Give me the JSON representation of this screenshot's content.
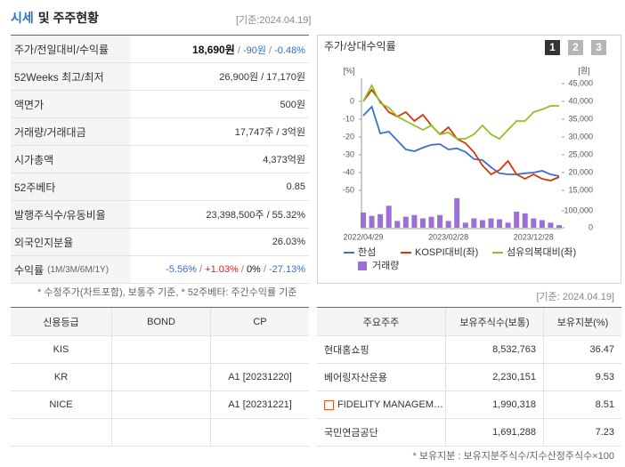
{
  "header": {
    "title_highlight": "시세",
    "title_rest": "및 주주현황",
    "date": "[기준:2024.04.19]"
  },
  "summary": {
    "rows": [
      {
        "label": "주가/전일대비/수익률",
        "segments": [
          {
            "text": "18,690원",
            "bold": true,
            "color": "#111111"
          },
          {
            "text": " / ",
            "color": "#888888"
          },
          {
            "text": "-90원",
            "color": "#2f6fd1"
          },
          {
            "text": " / ",
            "color": "#888888"
          },
          {
            "text": "-0.48%",
            "color": "#2f6fd1"
          }
        ]
      },
      {
        "label": "52Weeks 최고/최저",
        "segments": [
          {
            "text": "26,900원 / 17,170원",
            "color": "#333333"
          }
        ]
      },
      {
        "label": "액면가",
        "segments": [
          {
            "text": "500원",
            "color": "#333333"
          }
        ]
      },
      {
        "label": "거래량/거래대금",
        "segments": [
          {
            "text": "17,747주 / 3억원",
            "color": "#333333"
          }
        ]
      },
      {
        "label": "시가총액",
        "segments": [
          {
            "text": "4,373억원",
            "color": "#333333"
          }
        ]
      },
      {
        "label": "52주베타",
        "segments": [
          {
            "text": "0.85",
            "color": "#333333"
          }
        ]
      },
      {
        "label": "발행주식수/유동비율",
        "segments": [
          {
            "text": "23,398,500주 / 55.32%",
            "color": "#333333"
          }
        ]
      },
      {
        "label": "외국인지분율",
        "segments": [
          {
            "text": "26.03%",
            "color": "#333333"
          }
        ]
      },
      {
        "label": "수익률",
        "label_note": "(1M/3M/6M/1Y)",
        "segments": [
          {
            "text": "-5.56%",
            "color": "#2f6fd1"
          },
          {
            "text": " / ",
            "color": "#888888"
          },
          {
            "text": "+1.03%",
            "color": "#e02020"
          },
          {
            "text": " / ",
            "color": "#888888"
          },
          {
            "text": "0%",
            "color": "#111111"
          },
          {
            "text": " / ",
            "color": "#888888"
          },
          {
            "text": "-27.13%",
            "color": "#2f6fd1"
          }
        ]
      }
    ]
  },
  "note": "* 수정주가(차트포함), 보통주 기준, * 52주베타: 주간수익률 기준",
  "date2": "[기준: 2024.04.19]",
  "credit_table": {
    "headers": [
      "신용등급",
      "BOND",
      "CP"
    ],
    "rows": [
      [
        "KIS",
        null,
        null
      ],
      [
        "KR",
        null,
        "A1 [20231220]"
      ],
      [
        "NICE",
        null,
        "A1 [20231221]"
      ],
      [
        null,
        null,
        null
      ]
    ]
  },
  "holders_table": {
    "headers": [
      "주요주주",
      "보유주식수(보통)",
      "보유지분(%)"
    ],
    "rows": [
      {
        "cells": [
          "현대홈쇼핑",
          "8,532,763",
          "36.47"
        ]
      },
      {
        "cells": [
          "베어링자산운용",
          "2,230,151",
          "9.53"
        ]
      },
      {
        "cells": [
          "FIDELITY MANAGEM…",
          "1,990,318",
          "8.51"
        ],
        "icon": true
      },
      {
        "cells": [
          "국민연금공단",
          "1,691,288",
          "7.23"
        ]
      }
    ]
  },
  "footnote": "* 보유지분 : 보유지분주식수/지수산정주식수×100",
  "chart_data": {
    "type": "line",
    "title": "주가/상대수익률",
    "buttons": [
      "1",
      "2",
      "3"
    ],
    "active_button": 0,
    "categories": [
      "2022/04/29",
      null,
      null,
      null,
      null,
      null,
      null,
      null,
      null,
      null,
      "2023/02/28",
      null,
      null,
      null,
      null,
      null,
      null,
      null,
      null,
      null,
      "2023/12/28",
      null,
      null,
      null
    ],
    "y_unit": "[%]",
    "ylim": [
      -50,
      10
    ],
    "yticks": [
      -50,
      -40,
      -30,
      -20,
      -10,
      0
    ],
    "y2_unit": "[원]",
    "y2lim": [
      15000,
      45000
    ],
    "y2ticks": [
      {
        "value": 15000,
        "label": "15,000"
      },
      {
        "value": 20000,
        "label": "20,000"
      },
      {
        "value": 25000,
        "label": "25,000"
      },
      {
        "value": 30000,
        "label": "30,000"
      },
      {
        "value": 35000,
        "label": "35,000"
      },
      {
        "value": 40000,
        "label": "40,000"
      },
      {
        "value": 45000,
        "label": "45,000"
      }
    ],
    "y3lim": [
      0,
      200000
    ],
    "y3ticks": [
      0,
      {
        "value": 100000,
        "label": "100,000"
      }
    ],
    "grid": false,
    "series": [
      {
        "name": "한섬",
        "color": "#3b6fd6",
        "axis": "y2",
        "values": [
          36000,
          38500,
          31000,
          31500,
          29000,
          26500,
          26000,
          27000,
          27800,
          28000,
          26500,
          26800,
          25800,
          23800,
          23500,
          21500,
          19800,
          19500,
          19500,
          19800,
          20000,
          20500,
          19500,
          19000
        ]
      },
      {
        "name": "KOSPI대비(좌)",
        "color": "#d4380d",
        "values": [
          0,
          6.5,
          0,
          -6,
          -8.5,
          -6,
          -11,
          -7.5,
          -13.5,
          -18.5,
          -14.5,
          -21,
          -23.5,
          -28.5,
          -36,
          -41,
          -38.5,
          -33.5,
          -41,
          -43.5,
          -41,
          -43.5,
          -44.5,
          -42.5
        ]
      },
      {
        "name": "섬유의복대비(좌)",
        "color": "#8fc31f",
        "values": [
          0,
          9,
          -1,
          -3.5,
          -8.5,
          -11,
          -13.5,
          -16,
          -13.5,
          -18.5,
          -17.5,
          -21,
          -21,
          -18.5,
          -13.5,
          -18.5,
          -21,
          -16,
          -11,
          -11,
          -6,
          -4.5,
          -2.5,
          -2.5
        ]
      },
      {
        "name": "거래량",
        "color": "#9b6fd6",
        "type": "bar",
        "axis": "y3",
        "values": [
          90000,
          70000,
          80000,
          130000,
          40000,
          65000,
          75000,
          55000,
          65000,
          75000,
          40000,
          175000,
          30000,
          55000,
          45000,
          55000,
          50000,
          30000,
          95000,
          85000,
          55000,
          45000,
          30000,
          15000
        ]
      }
    ]
  }
}
